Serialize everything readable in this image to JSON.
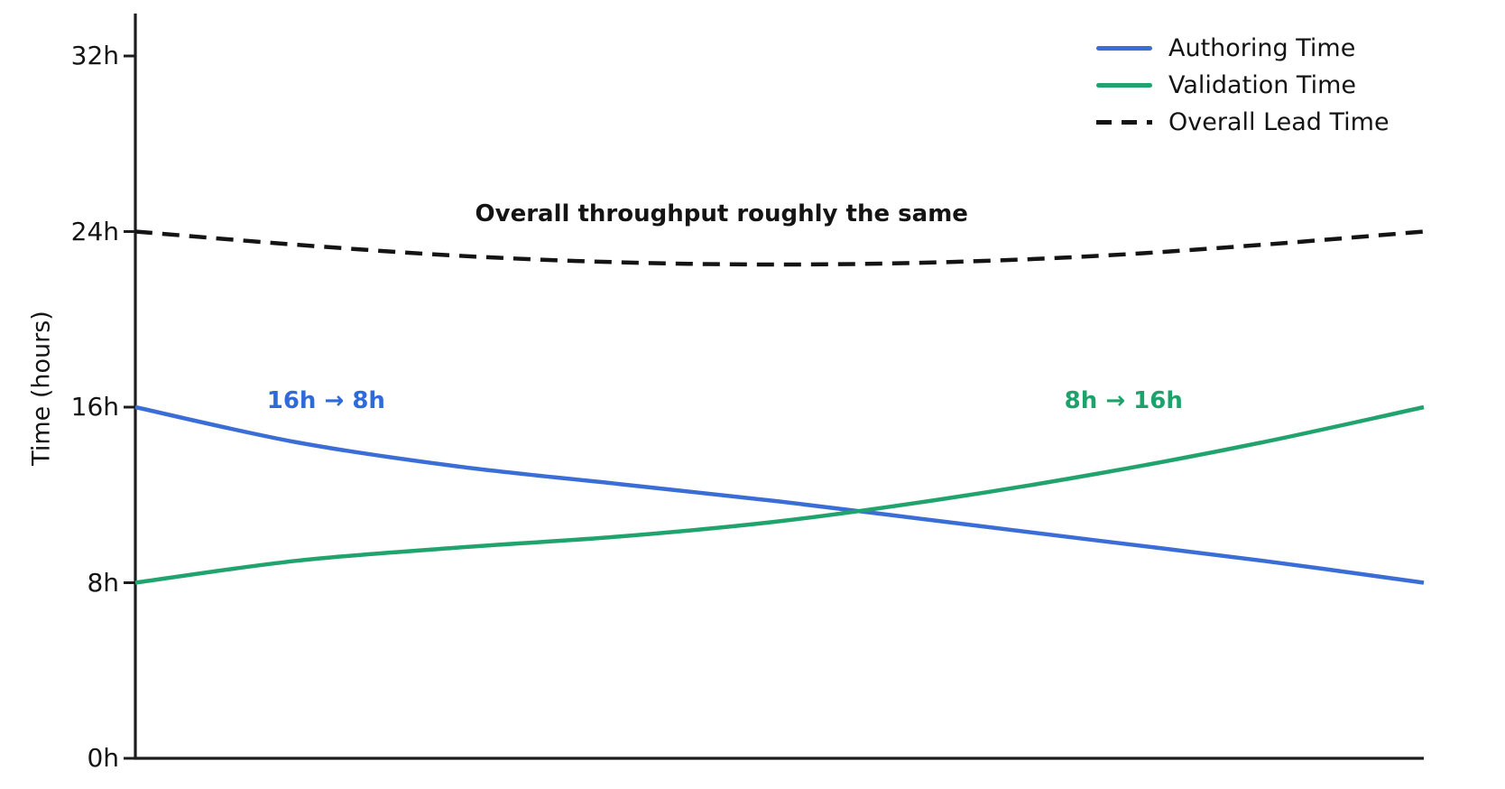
{
  "chart_data": {
    "type": "line",
    "title": "",
    "xlabel": "",
    "ylabel": "Time (hours)",
    "background": "#ffffff",
    "axis_color": "#1c1c1e",
    "text_color": "#141414",
    "grid": false,
    "x_axis_tick_labels": "none",
    "ylim_hours": [
      0,
      33.9
    ],
    "yticks": [
      {
        "value": 0,
        "label": "0h"
      },
      {
        "value": 8,
        "label": "8h"
      },
      {
        "value": 16,
        "label": "16h"
      },
      {
        "value": 24,
        "label": "24h"
      },
      {
        "value": 32,
        "label": "32h"
      }
    ],
    "x": [
      0,
      0.125,
      0.25,
      0.375,
      0.5,
      0.625,
      0.75,
      0.875,
      1
    ],
    "series": [
      {
        "name": "Authoring Time",
        "color": "#3b6dd6",
        "line_style": "solid",
        "values": [
          16.0,
          14.4,
          13.3,
          12.5,
          11.7,
          10.8,
          9.9,
          9.0,
          8.0
        ]
      },
      {
        "name": "Validation Time",
        "color": "#21a36d",
        "line_style": "solid",
        "values": [
          8.0,
          9.0,
          9.6,
          10.1,
          10.8,
          11.8,
          13.0,
          14.4,
          16.0
        ]
      },
      {
        "name": "Overall Lead Time",
        "color": "#141414",
        "line_style": "dashed",
        "values": [
          24.0,
          23.4,
          22.9,
          22.6,
          22.5,
          22.6,
          22.9,
          23.4,
          24.0
        ]
      }
    ],
    "legend": {
      "position": "top-right",
      "frame": false
    },
    "annotations": [
      {
        "text": "Overall throughput roughly the same",
        "color": "#141414",
        "x": 0.455,
        "y_hours": 24.8
      },
      {
        "text": "16h → 8h",
        "color": "#2f6bd8",
        "x": 0.148,
        "y_hours": 16.3
      },
      {
        "text": "8h → 16h",
        "color": "#1da26b",
        "x": 0.767,
        "y_hours": 16.3
      }
    ]
  }
}
